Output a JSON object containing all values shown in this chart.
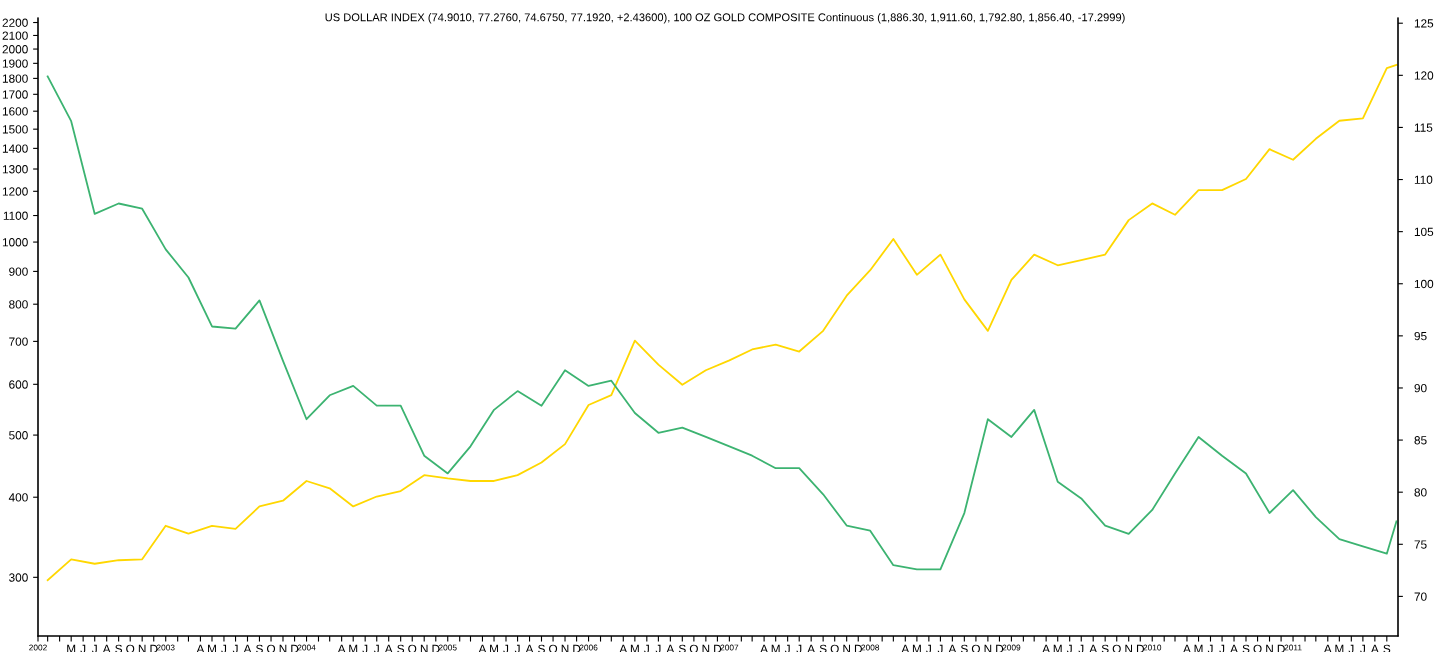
{
  "chart_data": {
    "type": "line",
    "title": "US DOLLAR INDEX (74.9010, 77.2760, 74.6750, 77.1920, +2.43600), 100 OZ GOLD COMPOSITE Continuous (1,886.30, 1,911.60, 1,792.80, 1,856.40, -17.2999)",
    "x": [
      "2002-03",
      "2002-05",
      "2002-07",
      "2002-09",
      "2002-11",
      "2003-01",
      "2003-03",
      "2003-05",
      "2003-07",
      "2003-09",
      "2003-11",
      "2004-01",
      "2004-03",
      "2004-05",
      "2004-07",
      "2004-09",
      "2004-11",
      "2005-01",
      "2005-03",
      "2005-05",
      "2005-07",
      "2005-09",
      "2005-11",
      "2006-01",
      "2006-03",
      "2006-05",
      "2006-07",
      "2006-09",
      "2006-11",
      "2007-01",
      "2007-03",
      "2007-05",
      "2007-07",
      "2007-09",
      "2007-11",
      "2008-01",
      "2008-03",
      "2008-05",
      "2008-07",
      "2008-09",
      "2008-11",
      "2009-01",
      "2009-03",
      "2009-05",
      "2009-07",
      "2009-09",
      "2009-11",
      "2010-01",
      "2010-03",
      "2010-05",
      "2010-07",
      "2010-09",
      "2010-11",
      "2011-01",
      "2011-03",
      "2011-05",
      "2011-07",
      "2011-09",
      "2011-09-26"
    ],
    "series": [
      {
        "axis": "y2",
        "color": "#3cb371",
        "values": [
          119.9,
          115.6,
          106.7,
          107.7,
          107.2,
          103.3,
          100.6,
          95.9,
          95.7,
          98.4,
          92.6,
          87.0,
          89.3,
          90.2,
          88.3,
          88.3,
          83.5,
          81.8,
          84.4,
          87.9,
          89.7,
          88.3,
          91.7,
          90.2,
          90.7,
          87.6,
          85.7,
          86.2,
          85.3,
          84.4,
          83.5,
          82.3,
          82.3,
          79.8,
          76.8,
          76.3,
          73.0,
          72.6,
          72.6,
          78.0,
          87.0,
          85.3,
          87.9,
          81.0,
          79.4,
          76.8,
          76.0,
          78.3,
          81.8,
          85.3,
          83.5,
          81.8,
          78.0,
          80.2,
          77.6,
          75.5,
          74.8,
          74.1,
          77.2
        ]
      },
      {
        "axis": "y",
        "color": "#ffd700",
        "values": [
          297,
          320,
          315,
          319,
          320,
          361,
          351,
          361,
          357,
          387,
          395,
          424,
          413,
          387,
          401,
          409,
          433,
          428,
          424,
          424,
          433,
          453,
          484,
          557,
          577,
          702,
          644,
          599,
          631,
          654,
          680,
          692,
          675,
          727,
          825,
          904,
          1011,
          889,
          956,
          814,
          727,
          873,
          956,
          920,
          937,
          956,
          1082,
          1149,
          1103,
          1205,
          1205,
          1254,
          1396,
          1344,
          1449,
          1546,
          1559,
          1868,
          1890
        ]
      }
    ],
    "log": "y",
    "ylim": [
      243,
      2236
    ],
    "yticks": [
      300,
      400,
      500,
      600,
      700,
      800,
      900,
      1000,
      1100,
      1200,
      1300,
      1400,
      1500,
      1600,
      1700,
      1800,
      1900,
      2000,
      2100,
      2200
    ],
    "y2lim": [
      66.2,
      125.5
    ],
    "y2ticks": [
      70,
      75,
      80,
      85,
      90,
      95,
      100,
      105,
      110,
      115,
      120,
      125
    ],
    "xlim": [
      "2002-02-04",
      "2011-09-30"
    ],
    "xticks": [
      {
        "value": "2002-02-04",
        "label": "2002"
      },
      {
        "value": "2002-03",
        "label": null
      },
      {
        "value": "2002-04",
        "label": null
      },
      {
        "value": "2002-05",
        "label": "M"
      },
      {
        "value": "2002-06",
        "label": "J"
      },
      {
        "value": "2002-07",
        "label": "J"
      },
      {
        "value": "2002-08",
        "label": "A"
      },
      {
        "value": "2002-09",
        "label": "S"
      },
      {
        "value": "2002-10",
        "label": "O"
      },
      {
        "value": "2002-11",
        "label": "N"
      },
      {
        "value": "2002-12",
        "label": "D"
      },
      {
        "value": "2003-01",
        "label": "2003"
      },
      {
        "value": "2003-02",
        "label": null
      },
      {
        "value": "2003-03",
        "label": null
      },
      {
        "value": "2003-04",
        "label": "A"
      },
      {
        "value": "2003-05",
        "label": "M"
      },
      {
        "value": "2003-06",
        "label": "J"
      },
      {
        "value": "2003-07",
        "label": "J"
      },
      {
        "value": "2003-08",
        "label": "A"
      },
      {
        "value": "2003-09",
        "label": "S"
      },
      {
        "value": "2003-10",
        "label": "O"
      },
      {
        "value": "2003-11",
        "label": "N"
      },
      {
        "value": "2003-12",
        "label": "D"
      },
      {
        "value": "2004-01",
        "label": "2004"
      },
      {
        "value": "2004-02",
        "label": null
      },
      {
        "value": "2004-03",
        "label": null
      },
      {
        "value": "2004-04",
        "label": "A"
      },
      {
        "value": "2004-05",
        "label": "M"
      },
      {
        "value": "2004-06",
        "label": "J"
      },
      {
        "value": "2004-07",
        "label": "J"
      },
      {
        "value": "2004-08",
        "label": "A"
      },
      {
        "value": "2004-09",
        "label": "S"
      },
      {
        "value": "2004-10",
        "label": "O"
      },
      {
        "value": "2004-11",
        "label": "N"
      },
      {
        "value": "2004-12",
        "label": "D"
      },
      {
        "value": "2005-01",
        "label": "2005"
      },
      {
        "value": "2005-02",
        "label": null
      },
      {
        "value": "2005-03",
        "label": null
      },
      {
        "value": "2005-04",
        "label": "A"
      },
      {
        "value": "2005-05",
        "label": "M"
      },
      {
        "value": "2005-06",
        "label": "J"
      },
      {
        "value": "2005-07",
        "label": "J"
      },
      {
        "value": "2005-08",
        "label": "A"
      },
      {
        "value": "2005-09",
        "label": "S"
      },
      {
        "value": "2005-10",
        "label": "O"
      },
      {
        "value": "2005-11",
        "label": "N"
      },
      {
        "value": "2005-12",
        "label": "D"
      },
      {
        "value": "2006-01",
        "label": "2006"
      },
      {
        "value": "2006-02",
        "label": null
      },
      {
        "value": "2006-03",
        "label": null
      },
      {
        "value": "2006-04",
        "label": "A"
      },
      {
        "value": "2006-05",
        "label": "M"
      },
      {
        "value": "2006-06",
        "label": "J"
      },
      {
        "value": "2006-07",
        "label": "J"
      },
      {
        "value": "2006-08",
        "label": "A"
      },
      {
        "value": "2006-09",
        "label": "S"
      },
      {
        "value": "2006-10",
        "label": "O"
      },
      {
        "value": "2006-11",
        "label": "N"
      },
      {
        "value": "2006-12",
        "label": "D"
      },
      {
        "value": "2007-01",
        "label": "2007"
      },
      {
        "value": "2007-02",
        "label": null
      },
      {
        "value": "2007-03",
        "label": null
      },
      {
        "value": "2007-04",
        "label": "A"
      },
      {
        "value": "2007-05",
        "label": "M"
      },
      {
        "value": "2007-06",
        "label": "J"
      },
      {
        "value": "2007-07",
        "label": "J"
      },
      {
        "value": "2007-08",
        "label": "A"
      },
      {
        "value": "2007-09",
        "label": "S"
      },
      {
        "value": "2007-10",
        "label": "O"
      },
      {
        "value": "2007-11",
        "label": "N"
      },
      {
        "value": "2007-12",
        "label": "D"
      },
      {
        "value": "2008-01",
        "label": "2008"
      },
      {
        "value": "2008-02",
        "label": null
      },
      {
        "value": "2008-03",
        "label": null
      },
      {
        "value": "2008-04",
        "label": "A"
      },
      {
        "value": "2008-05",
        "label": "M"
      },
      {
        "value": "2008-06",
        "label": "J"
      },
      {
        "value": "2008-07",
        "label": "J"
      },
      {
        "value": "2008-08",
        "label": "A"
      },
      {
        "value": "2008-09",
        "label": "S"
      },
      {
        "value": "2008-10",
        "label": "O"
      },
      {
        "value": "2008-11",
        "label": "N"
      },
      {
        "value": "2008-12",
        "label": "D"
      },
      {
        "value": "2009-01",
        "label": "2009"
      },
      {
        "value": "2009-02",
        "label": null
      },
      {
        "value": "2009-03",
        "label": null
      },
      {
        "value": "2009-04",
        "label": "A"
      },
      {
        "value": "2009-05",
        "label": "M"
      },
      {
        "value": "2009-06",
        "label": "J"
      },
      {
        "value": "2009-07",
        "label": "J"
      },
      {
        "value": "2009-08",
        "label": "A"
      },
      {
        "value": "2009-09",
        "label": "S"
      },
      {
        "value": "2009-10",
        "label": "O"
      },
      {
        "value": "2009-11",
        "label": "N"
      },
      {
        "value": "2009-12",
        "label": "D"
      },
      {
        "value": "2010-01",
        "label": "2010"
      },
      {
        "value": "2010-02",
        "label": null
      },
      {
        "value": "2010-03",
        "label": null
      },
      {
        "value": "2010-04",
        "label": "A"
      },
      {
        "value": "2010-05",
        "label": "M"
      },
      {
        "value": "2010-06",
        "label": "J"
      },
      {
        "value": "2010-07",
        "label": "J"
      },
      {
        "value": "2010-08",
        "label": "A"
      },
      {
        "value": "2010-09",
        "label": "S"
      },
      {
        "value": "2010-10",
        "label": "O"
      },
      {
        "value": "2010-11",
        "label": "N"
      },
      {
        "value": "2010-12",
        "label": "D"
      },
      {
        "value": "2011-01",
        "label": "2011"
      },
      {
        "value": "2011-02",
        "label": null
      },
      {
        "value": "2011-03",
        "label": null
      },
      {
        "value": "2011-04",
        "label": "A"
      },
      {
        "value": "2011-05",
        "label": "M"
      },
      {
        "value": "2011-06",
        "label": "J"
      },
      {
        "value": "2011-07",
        "label": "J"
      },
      {
        "value": "2011-08",
        "label": "A"
      },
      {
        "value": "2011-09",
        "label": "S"
      }
    ],
    "grid": false,
    "legend": false
  }
}
